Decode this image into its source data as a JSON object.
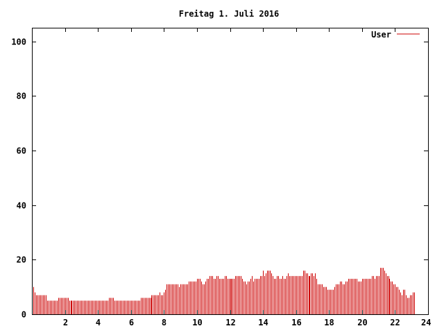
{
  "chart_data": {
    "type": "bar",
    "title": "Freitag 1. Juli 2016",
    "xlabel": "",
    "ylabel": "",
    "xlim": [
      0,
      24
    ],
    "ylim": [
      0,
      105
    ],
    "x_ticks": [
      "2",
      "4",
      "6",
      "8",
      "10",
      "12",
      "14",
      "16",
      "18",
      "20",
      "22",
      "24"
    ],
    "y_ticks": [
      "0",
      "20",
      "40",
      "60",
      "80",
      "100"
    ],
    "grid": false,
    "legend_position": "top-right",
    "series": [
      {
        "name": "User",
        "color": "#cc0000",
        "sample_interval_minutes": 5,
        "values": [
          10,
          8,
          7,
          7,
          7,
          7,
          7,
          7,
          7,
          7,
          5,
          5,
          5,
          5,
          5,
          5,
          5,
          5,
          6,
          6,
          6,
          6,
          6,
          6,
          6,
          6,
          5,
          5,
          5,
          5,
          5,
          5,
          5,
          5,
          5,
          5,
          5,
          5,
          5,
          5,
          5,
          5,
          5,
          5,
          5,
          5,
          5,
          5,
          5,
          5,
          5,
          5,
          5,
          5,
          5,
          6,
          6,
          6,
          6,
          5,
          5,
          5,
          5,
          5,
          5,
          5,
          5,
          5,
          5,
          5,
          5,
          5,
          5,
          5,
          5,
          5,
          5,
          5,
          6,
          6,
          6,
          6,
          6,
          6,
          6,
          6,
          7,
          7,
          7,
          7,
          7,
          7,
          8,
          7,
          7,
          8,
          9,
          11,
          11,
          11,
          11,
          11,
          11,
          11,
          11,
          11,
          10,
          11,
          11,
          11,
          11,
          11,
          11,
          12,
          12,
          12,
          12,
          12,
          12,
          13,
          13,
          13,
          12,
          11,
          11,
          12,
          13,
          13,
          14,
          14,
          14,
          13,
          13,
          14,
          14,
          13,
          13,
          13,
          13,
          14,
          14,
          13,
          13,
          13,
          13,
          13,
          13,
          14,
          14,
          14,
          14,
          14,
          13,
          12,
          12,
          11,
          12,
          12,
          13,
          14,
          12,
          13,
          13,
          13,
          13,
          14,
          14,
          16,
          14,
          15,
          16,
          16,
          16,
          15,
          14,
          13,
          13,
          14,
          14,
          13,
          13,
          14,
          13,
          13,
          14,
          15,
          14,
          14,
          14,
          14,
          14,
          14,
          14,
          14,
          14,
          14,
          16,
          16,
          15,
          15,
          14,
          14,
          15,
          15,
          14,
          15,
          13,
          11,
          11,
          11,
          11,
          10,
          10,
          10,
          9,
          9,
          9,
          9,
          9,
          10,
          11,
          11,
          11,
          12,
          12,
          11,
          11,
          12,
          12,
          13,
          13,
          13,
          13,
          13,
          13,
          13,
          12,
          12,
          12,
          13,
          13,
          13,
          13,
          13,
          13,
          13,
          14,
          14,
          13,
          14,
          14,
          14,
          17,
          17,
          17,
          16,
          15,
          14,
          14,
          13,
          12,
          12,
          11,
          11,
          10,
          10,
          9,
          8,
          7,
          9,
          9,
          7,
          6,
          6,
          7,
          7,
          8,
          8
        ]
      }
    ]
  }
}
